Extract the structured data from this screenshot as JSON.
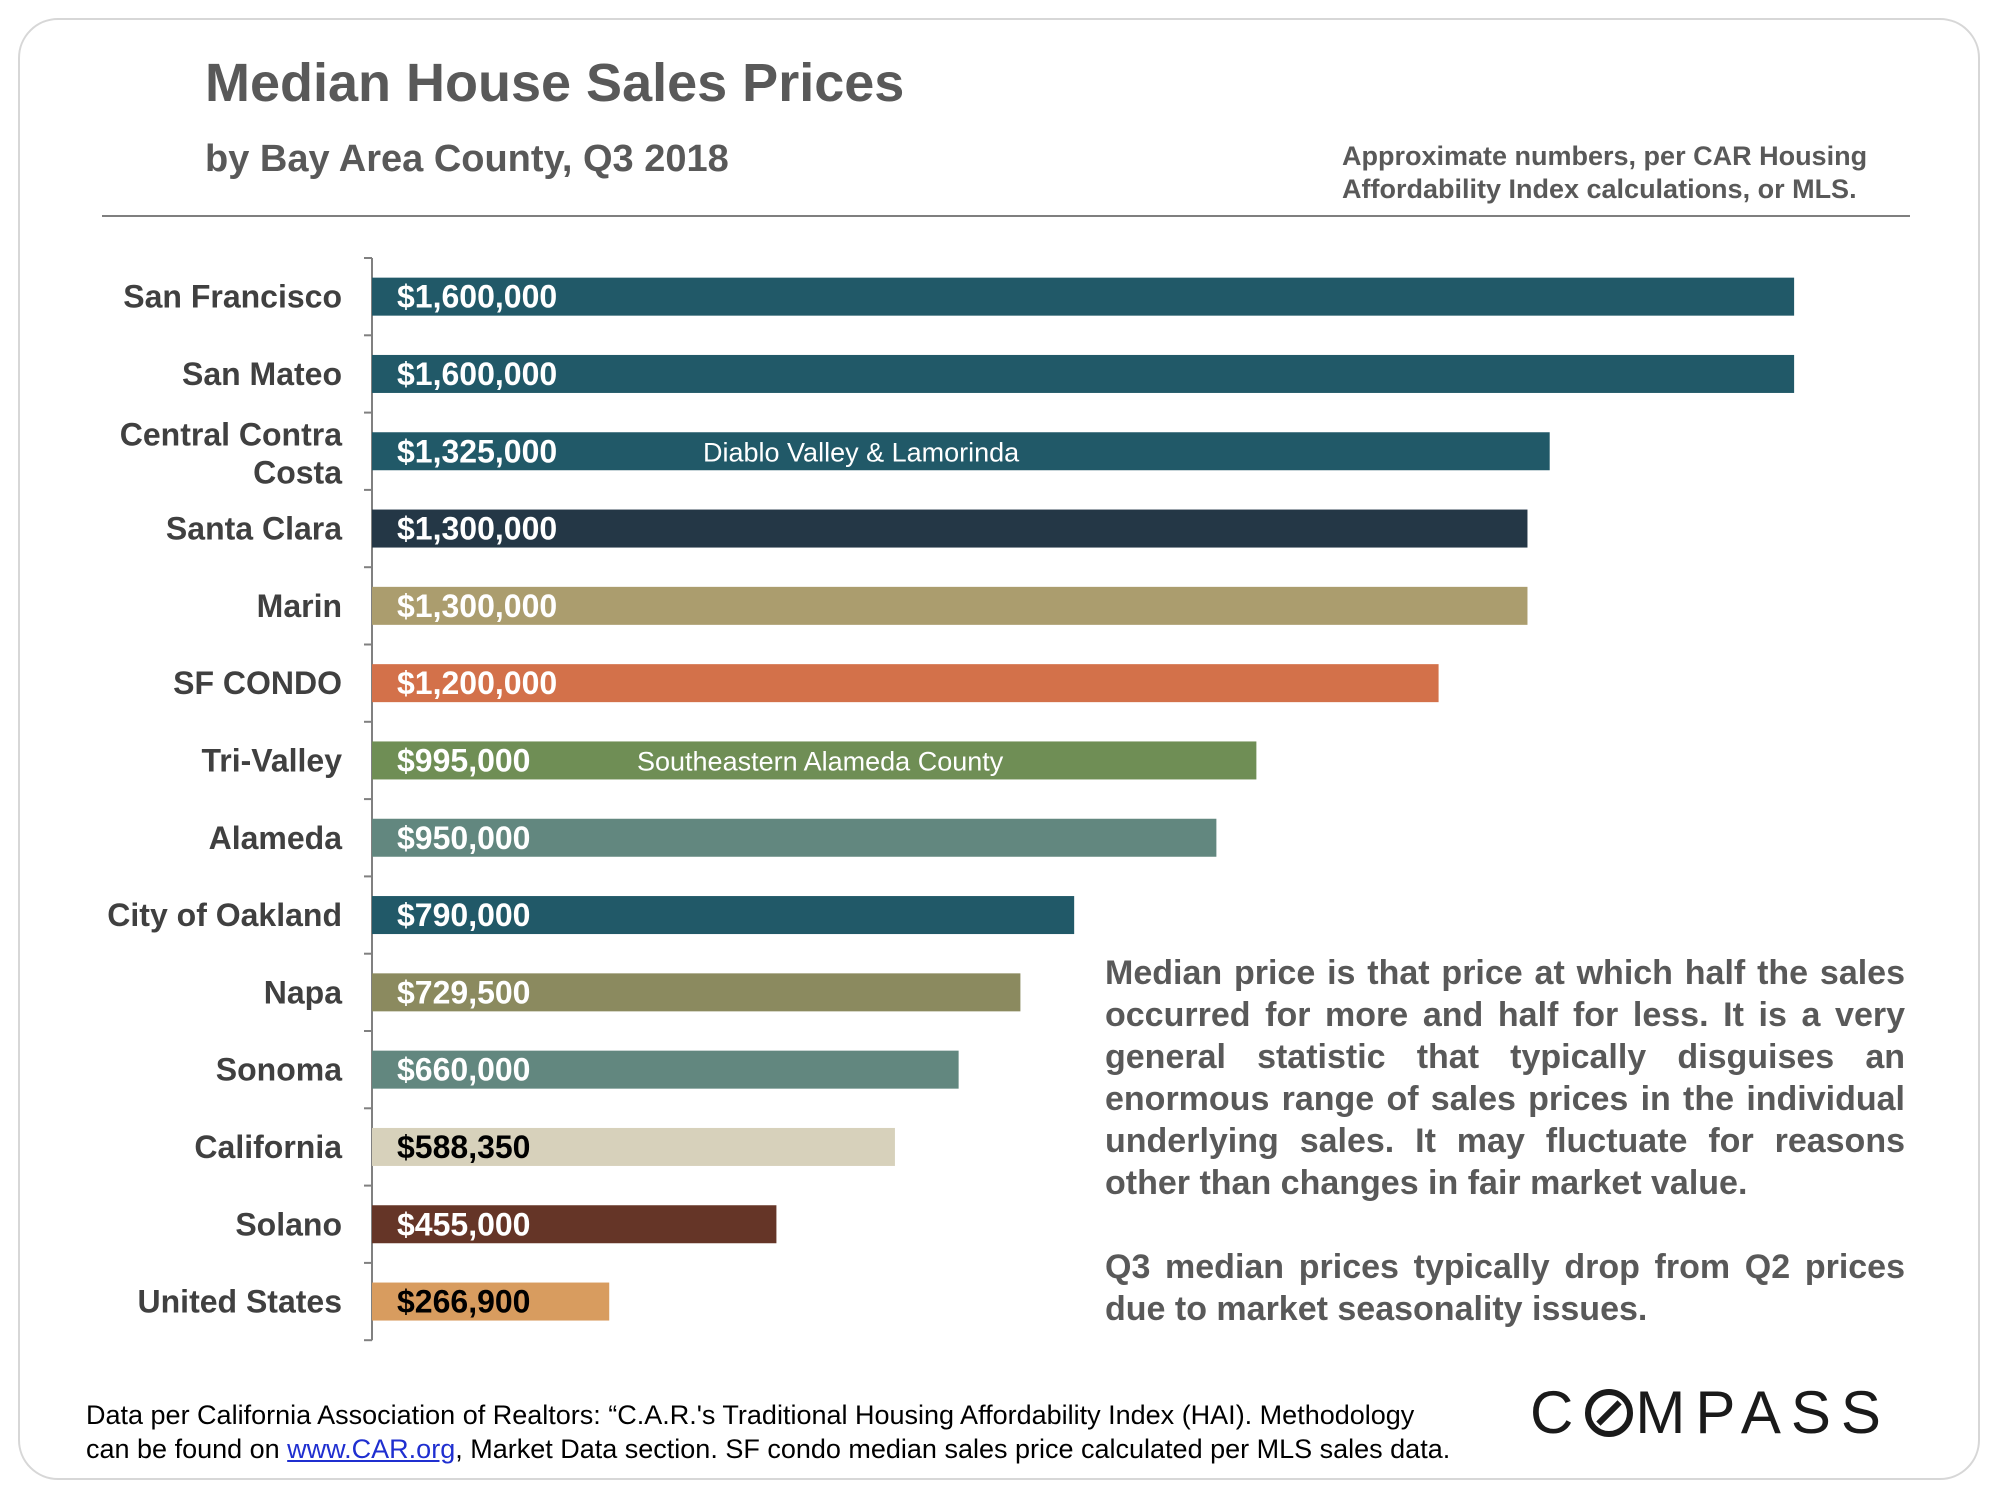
{
  "header": {
    "title": "Median House Sales Prices",
    "subtitle": "by Bay Area County, Q3 2018",
    "source_note": "Approximate numbers, per CAR Housing Affordability Index calculations, or MLS."
  },
  "chart_data": {
    "type": "bar",
    "orientation": "horizontal",
    "categories": [
      "San Francisco",
      "San Mateo",
      "Central Contra Costa",
      "Santa Clara",
      "Marin",
      "SF CONDO",
      "Tri-Valley",
      "Alameda",
      "City of Oakland",
      "Napa",
      "Sonoma",
      "California",
      "Solano",
      "United States"
    ],
    "values": [
      1600000,
      1600000,
      1325000,
      1300000,
      1300000,
      1200000,
      995000,
      950000,
      790000,
      729500,
      660000,
      588350,
      455000,
      266900
    ],
    "value_labels": [
      "$1,600,000",
      "$1,600,000",
      "$1,325,000",
      "$1,300,000",
      "$1,300,000",
      "$1,200,000",
      "$995,000",
      "$950,000",
      "$790,000",
      "$729,500",
      "$660,000",
      "$588,350",
      "$455,000",
      "$266,900"
    ],
    "annotations": [
      {
        "category": "Central Contra Costa",
        "text": "Diablo Valley & Lamorinda"
      },
      {
        "category": "Tri-Valley",
        "text": "Southeastern Alameda County"
      }
    ],
    "colors": [
      "#215968",
      "#215968",
      "#215968",
      "#243746",
      "#ab9d6e",
      "#d3714a",
      "#6f8e55",
      "#62877f",
      "#215968",
      "#8b8a5f",
      "#62877f",
      "#d7d1bb",
      "#653527",
      "#d89c5f"
    ],
    "label_colors": [
      "#ffffff",
      "#ffffff",
      "#ffffff",
      "#ffffff",
      "#ffffff",
      "#ffffff",
      "#ffffff",
      "#ffffff",
      "#ffffff",
      "#ffffff",
      "#ffffff",
      "#000000",
      "#ffffff",
      "#000000"
    ],
    "xlim": [
      0,
      1700000
    ],
    "grid": false,
    "legend": "none"
  },
  "explanation": {
    "paragraph1": "Median price is that price at which half the sales occurred for more and half for less. It is a very general statistic that typically disguises an enormous range of sales prices in the individual underlying sales. It may fluctuate for reasons other than changes in fair market value.",
    "paragraph2": "Q3 median prices typically drop from Q2 prices due to market seasonality issues."
  },
  "footnote": {
    "line1": "Data per California Association of Realtors: “C.A.R.'s Traditional Housing Affordability Index (HAI). Methodology",
    "line2_prefix": "can be found on ",
    "link_text": "www.CAR.org",
    "line2_suffix": ", Market Data section. SF condo median sales price calculated per MLS sales data."
  },
  "logo": {
    "part1": "C",
    "part2": "MPASS"
  }
}
